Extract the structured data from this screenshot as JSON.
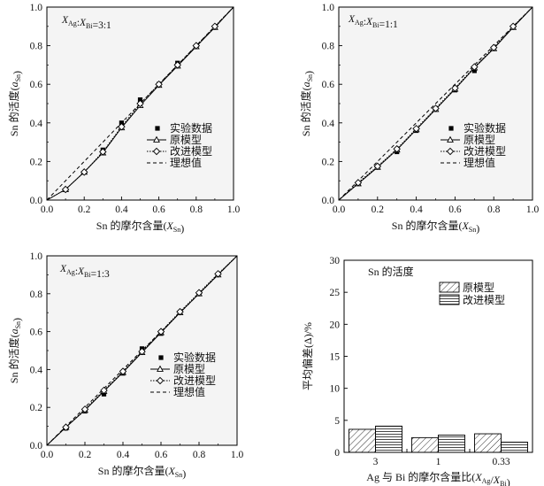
{
  "chart_data": [
    {
      "type": "line",
      "title": "",
      "panel_annotation": {
        "var_a": "X",
        "sub_a": "Ag",
        "sep": ":",
        "var_b": "X",
        "sub_b": "Bi",
        "ratio": "=3:1"
      },
      "xlabel": {
        "main": "Sn 的摩尔含量(",
        "var": "X",
        "sub": "Sn",
        "close": ")"
      },
      "ylabel": {
        "main": "Sn 的活度(",
        "var": "a",
        "sub": "Sn",
        "close": ")"
      },
      "xlim": [
        0,
        1.0
      ],
      "ylim": [
        0,
        1.0
      ],
      "xticks": [
        "0.0",
        "0.2",
        "0.4",
        "0.6",
        "0.8",
        "1.0"
      ],
      "yticks": [
        "0.0",
        "0.2",
        "0.4",
        "0.6",
        "0.8",
        "1.0"
      ],
      "legend_position": "center-right",
      "series": [
        {
          "name": "实验数据",
          "style": "filled-square",
          "x": [
            0.3,
            0.4,
            0.5,
            0.6,
            0.7
          ],
          "y": [
            0.26,
            0.4,
            0.52,
            0.6,
            0.71
          ]
        },
        {
          "name": "原模型",
          "style": "solid-triangle",
          "x": [
            0,
            0.1,
            0.2,
            0.3,
            0.4,
            0.5,
            0.6,
            0.7,
            0.8,
            0.9,
            1.0
          ],
          "y": [
            0,
            0.055,
            0.145,
            0.245,
            0.375,
            0.49,
            0.595,
            0.695,
            0.795,
            0.895,
            1.0
          ]
        },
        {
          "name": "改进模型",
          "style": "dotted-diamond",
          "x": [
            0,
            0.1,
            0.2,
            0.3,
            0.4,
            0.5,
            0.6,
            0.7,
            0.8,
            0.9,
            1.0
          ],
          "y": [
            0,
            0.055,
            0.145,
            0.25,
            0.38,
            0.5,
            0.6,
            0.7,
            0.8,
            0.9,
            1.0
          ]
        },
        {
          "name": "理想值",
          "style": "dashed",
          "x": [
            0,
            1.0
          ],
          "y": [
            0,
            1.0
          ]
        }
      ]
    },
    {
      "type": "line",
      "title": "",
      "panel_annotation": {
        "var_a": "X",
        "sub_a": "Ag",
        "sep": ":",
        "var_b": "X",
        "sub_b": "Bi",
        "ratio": "=1:1"
      },
      "xlabel": {
        "main": "Sn 的摩尔含量(",
        "var": "X",
        "sub": "Sn",
        "close": ")"
      },
      "ylabel": {
        "main": "Sn 的活度(",
        "var": "a",
        "sub": "Sn",
        "close": ")"
      },
      "xlim": [
        0,
        1.0
      ],
      "ylim": [
        0,
        1.0
      ],
      "xticks": [
        "0.0",
        "0.2",
        "0.4",
        "0.6",
        "0.8",
        "1.0"
      ],
      "yticks": [
        "0.0",
        "0.2",
        "0.4",
        "0.6",
        "0.8",
        "1.0"
      ],
      "legend_position": "center-right",
      "series": [
        {
          "name": "实验数据",
          "style": "filled-square",
          "x": [
            0.3,
            0.4,
            0.5,
            0.6,
            0.7
          ],
          "y": [
            0.25,
            0.36,
            0.47,
            0.57,
            0.67
          ]
        },
        {
          "name": "原模型",
          "style": "solid-triangle",
          "x": [
            0,
            0.1,
            0.2,
            0.3,
            0.4,
            0.5,
            0.6,
            0.7,
            0.8,
            0.9,
            1.0
          ],
          "y": [
            0,
            0.085,
            0.17,
            0.26,
            0.365,
            0.47,
            0.575,
            0.685,
            0.785,
            0.895,
            1.0
          ]
        },
        {
          "name": "改进模型",
          "style": "dotted-diamond",
          "x": [
            0,
            0.1,
            0.2,
            0.3,
            0.4,
            0.5,
            0.6,
            0.7,
            0.8,
            0.9,
            1.0
          ],
          "y": [
            0,
            0.09,
            0.175,
            0.265,
            0.37,
            0.475,
            0.58,
            0.69,
            0.79,
            0.9,
            1.0
          ]
        },
        {
          "name": "理想值",
          "style": "dashed",
          "x": [
            0,
            1.0
          ],
          "y": [
            0,
            1.0
          ]
        }
      ]
    },
    {
      "type": "line",
      "title": "",
      "panel_annotation": {
        "var_a": "X",
        "sub_a": "Ag",
        "sep": ":",
        "var_b": "X",
        "sub_b": "Bi",
        "ratio": "=1:3"
      },
      "xlabel": {
        "main": "Sn 的摩尔含量(",
        "var": "X",
        "sub": "Sn",
        "close": ")"
      },
      "ylabel": {
        "main": "Sn 的活度(",
        "var": "a",
        "sub": "Sn",
        "close": ")"
      },
      "xlim": [
        0,
        1.0
      ],
      "ylim": [
        0,
        1.0
      ],
      "xticks": [
        "0.0",
        "0.2",
        "0.4",
        "0.6",
        "0.8",
        "1.0"
      ],
      "yticks": [
        "0.0",
        "0.2",
        "0.4",
        "0.6",
        "0.8",
        "1.0"
      ],
      "legend_position": "center-right",
      "series": [
        {
          "name": "实验数据",
          "style": "filled-square",
          "x": [
            0.1,
            0.2,
            0.3,
            0.4,
            0.5,
            0.6,
            0.7
          ],
          "y": [
            0.09,
            0.18,
            0.27,
            0.38,
            0.51,
            0.59,
            0.7
          ]
        },
        {
          "name": "原模型",
          "style": "solid-triangle",
          "x": [
            0,
            0.1,
            0.2,
            0.3,
            0.4,
            0.5,
            0.6,
            0.7,
            0.8,
            0.9,
            1.0
          ],
          "y": [
            0,
            0.095,
            0.185,
            0.285,
            0.385,
            0.49,
            0.595,
            0.7,
            0.8,
            0.9,
            1.0
          ]
        },
        {
          "name": "改进模型",
          "style": "dotted-diamond",
          "x": [
            0,
            0.1,
            0.2,
            0.3,
            0.4,
            0.5,
            0.6,
            0.7,
            0.8,
            0.9,
            1.0
          ],
          "y": [
            0,
            0.095,
            0.19,
            0.29,
            0.39,
            0.495,
            0.6,
            0.705,
            0.805,
            0.905,
            1.0
          ]
        },
        {
          "name": "理想值",
          "style": "dashed",
          "x": [
            0,
            1.0
          ],
          "y": [
            0,
            1.0
          ]
        }
      ]
    },
    {
      "type": "bar",
      "title": "Sn 的活度",
      "xlabel": {
        "main": "Ag 与 Bi 的摩尔含量比(",
        "var_a": "X",
        "sub_a": "Ag",
        "sep": "/",
        "var_b": "X",
        "sub_b": "Bi",
        "close": ")"
      },
      "ylabel": "平均偏差(Δ)/%",
      "ylim": [
        0,
        30
      ],
      "yticks": [
        "0",
        "5",
        "10",
        "15",
        "20",
        "25",
        "30"
      ],
      "categories": [
        "3",
        "1",
        "0.33"
      ],
      "legend_position": "upper-center",
      "series": [
        {
          "name": "原模型",
          "pattern": "diagonal-hatch",
          "values": [
            3.6,
            2.3,
            2.9
          ]
        },
        {
          "name": "改进模型",
          "pattern": "horizontal-lines",
          "values": [
            4.1,
            2.7,
            1.6
          ]
        }
      ]
    }
  ]
}
